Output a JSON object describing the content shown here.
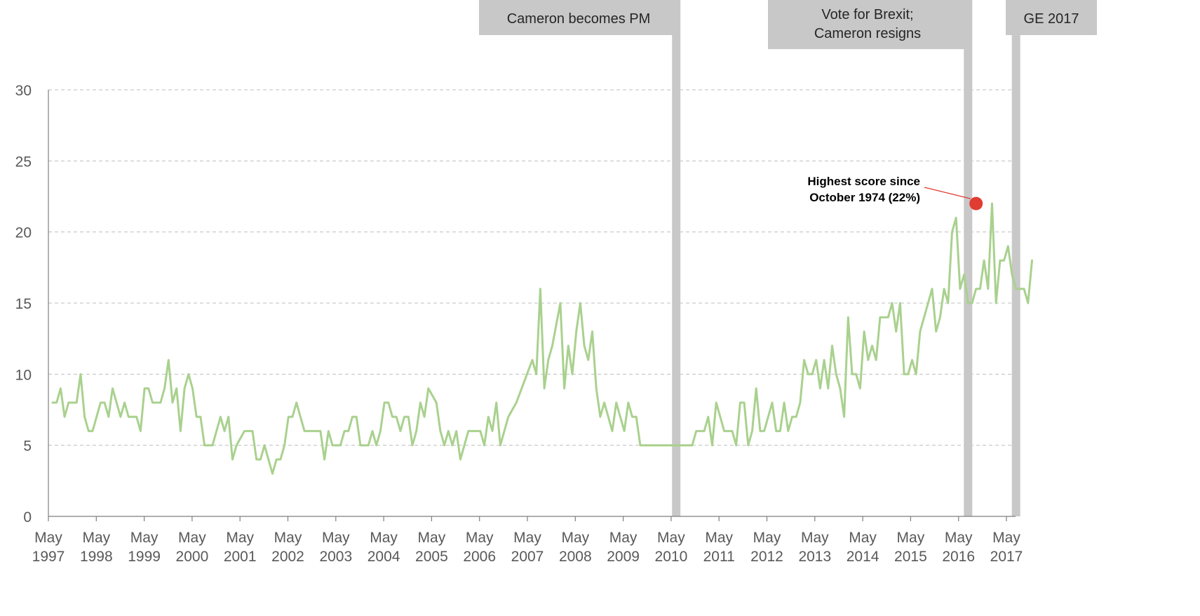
{
  "chart_data": {
    "type": "line",
    "title": "",
    "xlabel": "",
    "ylabel": "",
    "ylim": [
      0,
      30
    ],
    "yticks": [
      0,
      5,
      10,
      15,
      20,
      25,
      30
    ],
    "grid": "horizontal dashed",
    "x_start": "May 1997",
    "x_end": "June 2017",
    "x_ticks": [
      {
        "top": "May",
        "bottom": "1997"
      },
      {
        "top": "May",
        "bottom": "1998"
      },
      {
        "top": "May",
        "bottom": "1999"
      },
      {
        "top": "May",
        "bottom": "2000"
      },
      {
        "top": "May",
        "bottom": "2001"
      },
      {
        "top": "May",
        "bottom": "2002"
      },
      {
        "top": "May",
        "bottom": "2003"
      },
      {
        "top": "May",
        "bottom": "2004"
      },
      {
        "top": "May",
        "bottom": "2005"
      },
      {
        "top": "May",
        "bottom": "2006"
      },
      {
        "top": "May",
        "bottom": "2007"
      },
      {
        "top": "May",
        "bottom": "2008"
      },
      {
        "top": "May",
        "bottom": "2009"
      },
      {
        "top": "May",
        "bottom": "2010"
      },
      {
        "top": "May",
        "bottom": "2011"
      },
      {
        "top": "May",
        "bottom": "2012"
      },
      {
        "top": "May",
        "bottom": "2013"
      },
      {
        "top": "May",
        "bottom": "2014"
      },
      {
        "top": "May",
        "bottom": "2015"
      },
      {
        "top": "May",
        "bottom": "2016"
      },
      {
        "top": "May",
        "bottom": "2017"
      }
    ],
    "series": [
      {
        "color": "#a9d18e",
        "values": [
          8,
          8,
          9,
          7,
          8,
          8,
          8,
          10,
          7,
          6,
          6,
          7,
          8,
          8,
          7,
          9,
          8,
          7,
          8,
          7,
          7,
          7,
          6,
          9,
          9,
          8,
          8,
          8,
          9,
          11,
          8,
          9,
          6,
          9,
          10,
          9,
          7,
          7,
          5,
          5,
          5,
          6,
          7,
          6,
          7,
          4,
          5,
          5.5,
          6,
          6,
          6,
          4,
          4,
          5,
          4,
          3,
          4,
          4,
          5,
          7,
          7,
          8,
          7,
          6,
          6,
          6,
          6,
          6,
          4,
          6,
          5,
          5,
          5,
          6,
          6,
          7,
          7,
          5,
          5,
          5,
          6,
          5,
          6,
          8,
          8,
          7,
          7,
          6,
          7,
          7,
          5,
          6,
          8,
          7,
          9,
          8.5,
          8,
          6,
          5,
          6,
          5,
          6,
          4,
          5,
          6,
          6,
          6,
          6,
          5,
          7,
          6,
          8,
          5,
          6,
          7,
          7.5,
          8,
          8.75,
          9.5,
          10.25,
          11,
          10,
          16,
          9,
          11,
          12,
          13.5,
          15,
          9,
          12,
          10,
          13,
          15,
          12,
          11,
          13,
          9,
          7,
          8,
          7,
          6,
          8,
          7,
          6,
          8,
          7,
          7,
          5,
          5,
          5,
          5,
          5,
          5,
          5,
          5,
          5,
          5,
          5,
          5,
          5,
          5,
          6,
          6,
          6,
          7,
          5,
          8,
          7,
          6,
          6,
          6,
          5,
          8,
          8,
          5,
          6,
          9,
          6,
          6,
          7,
          8,
          6,
          6,
          8,
          6,
          7,
          7,
          8,
          11,
          10,
          10,
          11,
          9,
          11,
          9,
          12,
          10,
          9,
          7,
          14,
          10,
          10,
          9,
          13,
          11,
          12,
          11,
          14,
          14,
          14,
          15,
          13,
          15,
          10,
          10,
          11,
          10,
          13,
          14,
          15,
          16,
          13,
          14,
          16,
          15,
          20,
          21,
          16,
          17,
          15,
          15,
          16,
          16,
          18,
          16,
          22,
          15,
          18,
          18,
          19,
          17,
          16,
          16,
          16,
          15,
          18
        ]
      }
    ],
    "events": [
      {
        "label_lines": [
          "Cameron becomes PM"
        ],
        "date": "May 2010"
      },
      {
        "label_lines": [
          "Vote for Brexit;",
          "Cameron resigns"
        ],
        "date": "June 2016"
      },
      {
        "label_lines": [
          "GE 2017"
        ],
        "date": "June 2017"
      }
    ],
    "annotation": {
      "lines": [
        "Highest score since",
        "October 1974 (22%)"
      ],
      "date": "August 2016",
      "value": 22,
      "marker_color": "#e03c31"
    },
    "colors": {
      "line": "#a9d18e",
      "event_bar": "#c8c8c8",
      "gridline": "#bfbfbf",
      "axis": "#7f7f7f",
      "marker": "#e03c31"
    }
  }
}
